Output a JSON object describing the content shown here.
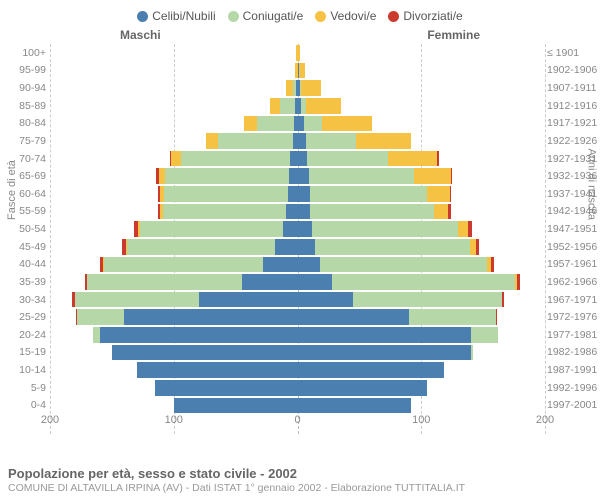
{
  "legend": [
    {
      "label": "Celibi/Nubili",
      "color": "#4a7fb0"
    },
    {
      "label": "Coniugati/e",
      "color": "#b6d7a8"
    },
    {
      "label": "Vedovi/e",
      "color": "#f6c244"
    },
    {
      "label": "Divorziati/e",
      "color": "#cc3a2d"
    }
  ],
  "side_labels": {
    "male": "Maschi",
    "female": "Femmine"
  },
  "axis_left_title": "Fasce di età",
  "axis_right_title": "Anni di nascita",
  "x_ticks": [
    200,
    100,
    0,
    100,
    200
  ],
  "x_max": 200,
  "footer_title": "Popolazione per età, sesso e stato civile - 2002",
  "footer_sub": "COMUNE DI ALTAVILLA IRPINA (AV) - Dati ISTAT 1° gennaio 2002 - Elaborazione TUTTITALIA.IT",
  "colors": {
    "celibi": "#4a7fb0",
    "coniugati": "#b6d7a8",
    "vedovi": "#f6c244",
    "divorziati": "#cc3a2d",
    "grid": "#cccccc",
    "text": "#666666",
    "bg": "#ffffff"
  },
  "rows": [
    {
      "age": "100+",
      "birth": "≤ 1901",
      "m": {
        "cel": 0,
        "con": 0,
        "ved": 1,
        "div": 0
      },
      "f": {
        "cel": 0,
        "con": 0,
        "ved": 2,
        "div": 0
      }
    },
    {
      "age": "95-99",
      "birth": "1902-1906",
      "m": {
        "cel": 0,
        "con": 0,
        "ved": 2,
        "div": 0
      },
      "f": {
        "cel": 1,
        "con": 0,
        "ved": 5,
        "div": 0
      }
    },
    {
      "age": "90-94",
      "birth": "1907-1911",
      "m": {
        "cel": 1,
        "con": 3,
        "ved": 5,
        "div": 0
      },
      "f": {
        "cel": 2,
        "con": 1,
        "ved": 16,
        "div": 0
      }
    },
    {
      "age": "85-89",
      "birth": "1912-1916",
      "m": {
        "cel": 2,
        "con": 12,
        "ved": 8,
        "div": 0
      },
      "f": {
        "cel": 3,
        "con": 4,
        "ved": 28,
        "div": 0
      }
    },
    {
      "age": "80-84",
      "birth": "1917-1921",
      "m": {
        "cel": 3,
        "con": 30,
        "ved": 10,
        "div": 0
      },
      "f": {
        "cel": 5,
        "con": 15,
        "ved": 40,
        "div": 0
      }
    },
    {
      "age": "75-79",
      "birth": "1922-1926",
      "m": {
        "cel": 4,
        "con": 60,
        "ved": 10,
        "div": 0
      },
      "f": {
        "cel": 7,
        "con": 40,
        "ved": 45,
        "div": 0
      }
    },
    {
      "age": "70-74",
      "birth": "1927-1931",
      "m": {
        "cel": 6,
        "con": 88,
        "ved": 8,
        "div": 1
      },
      "f": {
        "cel": 8,
        "con": 65,
        "ved": 40,
        "div": 1
      }
    },
    {
      "age": "65-69",
      "birth": "1932-1936",
      "m": {
        "cel": 7,
        "con": 100,
        "ved": 5,
        "div": 2
      },
      "f": {
        "cel": 9,
        "con": 85,
        "ved": 30,
        "div": 1
      }
    },
    {
      "age": "60-64",
      "birth": "1937-1941",
      "m": {
        "cel": 8,
        "con": 100,
        "ved": 3,
        "div": 2
      },
      "f": {
        "cel": 10,
        "con": 95,
        "ved": 18,
        "div": 1
      }
    },
    {
      "age": "55-59",
      "birth": "1942-1946",
      "m": {
        "cel": 9,
        "con": 100,
        "ved": 2,
        "div": 2
      },
      "f": {
        "cel": 10,
        "con": 100,
        "ved": 12,
        "div": 2
      }
    },
    {
      "age": "50-54",
      "birth": "1947-1951",
      "m": {
        "cel": 12,
        "con": 115,
        "ved": 2,
        "div": 3
      },
      "f": {
        "cel": 12,
        "con": 118,
        "ved": 8,
        "div": 3
      }
    },
    {
      "age": "45-49",
      "birth": "1952-1956",
      "m": {
        "cel": 18,
        "con": 120,
        "ved": 1,
        "div": 3
      },
      "f": {
        "cel": 14,
        "con": 125,
        "ved": 5,
        "div": 3
      }
    },
    {
      "age": "40-44",
      "birth": "1957-1961",
      "m": {
        "cel": 28,
        "con": 128,
        "ved": 1,
        "div": 3
      },
      "f": {
        "cel": 18,
        "con": 135,
        "ved": 3,
        "div": 3
      }
    },
    {
      "age": "35-39",
      "birth": "1962-1966",
      "m": {
        "cel": 45,
        "con": 125,
        "ved": 0,
        "div": 2
      },
      "f": {
        "cel": 28,
        "con": 148,
        "ved": 1,
        "div": 3
      }
    },
    {
      "age": "30-34",
      "birth": "1967-1971",
      "m": {
        "cel": 80,
        "con": 100,
        "ved": 0,
        "div": 2
      },
      "f": {
        "cel": 45,
        "con": 120,
        "ved": 0,
        "div": 2
      }
    },
    {
      "age": "25-29",
      "birth": "1972-1976",
      "m": {
        "cel": 140,
        "con": 38,
        "ved": 0,
        "div": 1
      },
      "f": {
        "cel": 90,
        "con": 70,
        "ved": 0,
        "div": 1
      }
    },
    {
      "age": "20-24",
      "birth": "1977-1981",
      "m": {
        "cel": 160,
        "con": 5,
        "ved": 0,
        "div": 0
      },
      "f": {
        "cel": 140,
        "con": 22,
        "ved": 0,
        "div": 0
      }
    },
    {
      "age": "15-19",
      "birth": "1982-1986",
      "m": {
        "cel": 150,
        "con": 0,
        "ved": 0,
        "div": 0
      },
      "f": {
        "cel": 140,
        "con": 2,
        "ved": 0,
        "div": 0
      }
    },
    {
      "age": "10-14",
      "birth": "1987-1991",
      "m": {
        "cel": 130,
        "con": 0,
        "ved": 0,
        "div": 0
      },
      "f": {
        "cel": 118,
        "con": 0,
        "ved": 0,
        "div": 0
      }
    },
    {
      "age": "5-9",
      "birth": "1992-1996",
      "m": {
        "cel": 115,
        "con": 0,
        "ved": 0,
        "div": 0
      },
      "f": {
        "cel": 105,
        "con": 0,
        "ved": 0,
        "div": 0
      }
    },
    {
      "age": "0-4",
      "birth": "1997-2001",
      "m": {
        "cel": 100,
        "con": 0,
        "ved": 0,
        "div": 0
      },
      "f": {
        "cel": 92,
        "con": 0,
        "ved": 0,
        "div": 0
      }
    }
  ]
}
